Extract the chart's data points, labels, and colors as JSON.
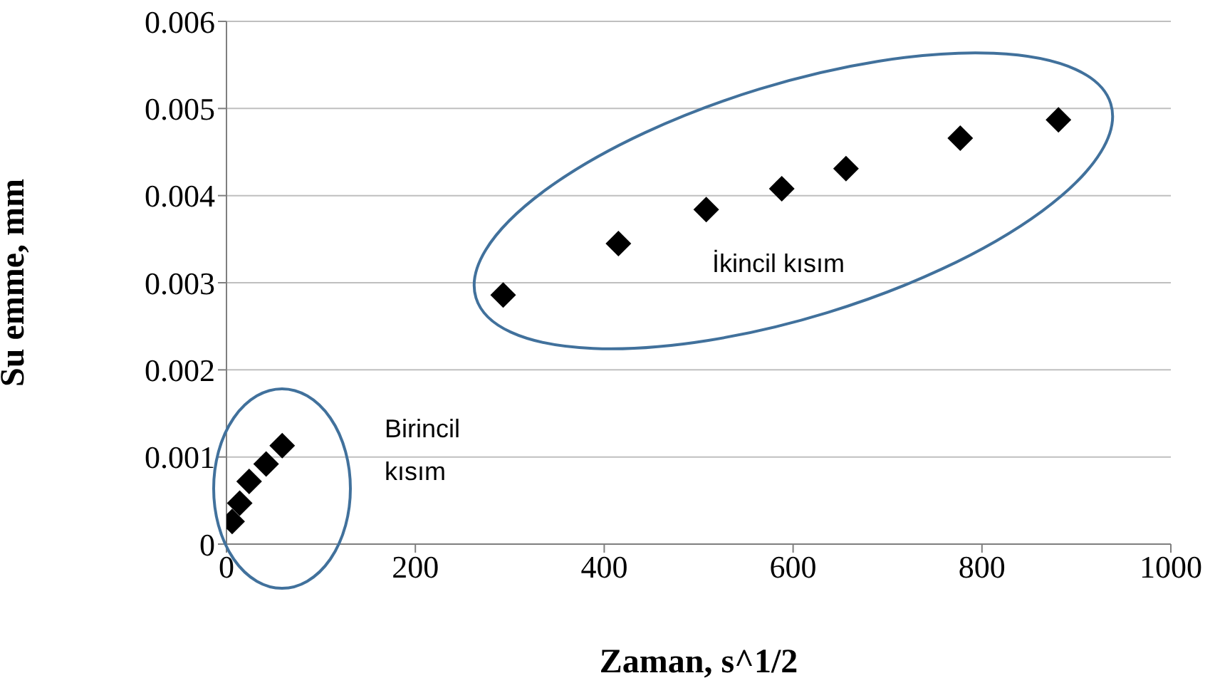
{
  "chart_data": {
    "type": "scatter",
    "xlabel": "Zaman, s^1/2",
    "ylabel": "Su emme, mm",
    "x": [
      6,
      14,
      24,
      42,
      59,
      293,
      415,
      508,
      588,
      656,
      777,
      881
    ],
    "series": [
      {
        "color": "#000000",
        "values": [
          0.00026,
          0.00047,
          0.00072,
          0.00092,
          0.00113,
          0.00286,
          0.00345,
          0.00384,
          0.00408,
          0.00431,
          0.00466,
          0.00487
        ]
      }
    ],
    "xlim": [
      0,
      1000
    ],
    "xticks": [
      0,
      200,
      400,
      600,
      800,
      1000
    ],
    "ylim": [
      0,
      0.006
    ],
    "yticks": [
      0,
      0.001,
      0.002,
      0.003,
      0.004,
      0.005,
      0.006
    ],
    "grid": "y",
    "marker": "diamond",
    "annotations": [
      "Birincil kısım",
      "İkincil kısım"
    ]
  }
}
